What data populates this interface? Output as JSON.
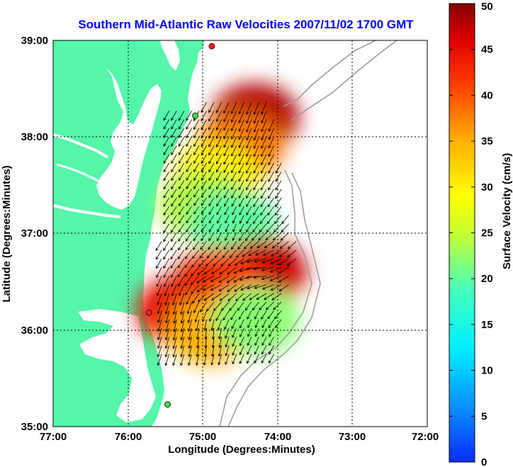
{
  "chart_data": {
    "type": "vector-field-map",
    "title": "Southern Mid-Atlantic Raw Velocities 2007/11/02 1700 GMT",
    "xlabel": "Longitude (Degrees:Minutes)",
    "ylabel": "Latitude (Degrees:Minutes)",
    "x_ticks": [
      "77:00",
      "76:00",
      "75:00",
      "74:00",
      "73:00",
      "72:00"
    ],
    "y_ticks": [
      "39:00",
      "38:00",
      "37:00",
      "36:00",
      "35:00"
    ],
    "xlim": [
      -77,
      -72
    ],
    "ylim": [
      35,
      39
    ],
    "grid": true,
    "colorbar": {
      "label": "Surface Velocity (cm/s)",
      "range": [
        0,
        50
      ],
      "ticks": [
        "0",
        "5",
        "10",
        "15",
        "20",
        "25",
        "30",
        "35",
        "40",
        "45",
        "50"
      ],
      "colormap": "jet"
    },
    "colors": {
      "land": "#55f5aa",
      "title": "#0000ff",
      "bathymetry": "#999999",
      "arrows": "#000000"
    },
    "stations": [
      {
        "lon": -74.88,
        "lat": 38.94,
        "color": "#ff2020"
      },
      {
        "lon": -75.1,
        "lat": 38.22,
        "color": "#40e040"
      },
      {
        "lon": -75.72,
        "lat": 36.18,
        "color": "#ff2020"
      },
      {
        "lon": -75.47,
        "lat": 35.23,
        "color": "#40e040"
      }
    ],
    "velocity_field": [
      {
        "lon": -74.3,
        "lat": 38.2,
        "speed": 48,
        "dir_deg": 200
      },
      {
        "lon": -74.5,
        "lat": 37.9,
        "speed": 38,
        "dir_deg": 205
      },
      {
        "lon": -74.8,
        "lat": 37.6,
        "speed": 30,
        "dir_deg": 210
      },
      {
        "lon": -75.0,
        "lat": 37.3,
        "speed": 24,
        "dir_deg": 215
      },
      {
        "lon": -74.6,
        "lat": 37.1,
        "speed": 20,
        "dir_deg": 200
      },
      {
        "lon": -74.2,
        "lat": 36.6,
        "speed": 47,
        "dir_deg": 270
      },
      {
        "lon": -74.8,
        "lat": 36.5,
        "speed": 42,
        "dir_deg": 250
      },
      {
        "lon": -75.3,
        "lat": 36.2,
        "speed": 45,
        "dir_deg": 190
      },
      {
        "lon": -74.9,
        "lat": 36.0,
        "speed": 35,
        "dir_deg": 180
      },
      {
        "lon": -74.3,
        "lat": 36.1,
        "speed": 22,
        "dir_deg": 200
      }
    ]
  }
}
